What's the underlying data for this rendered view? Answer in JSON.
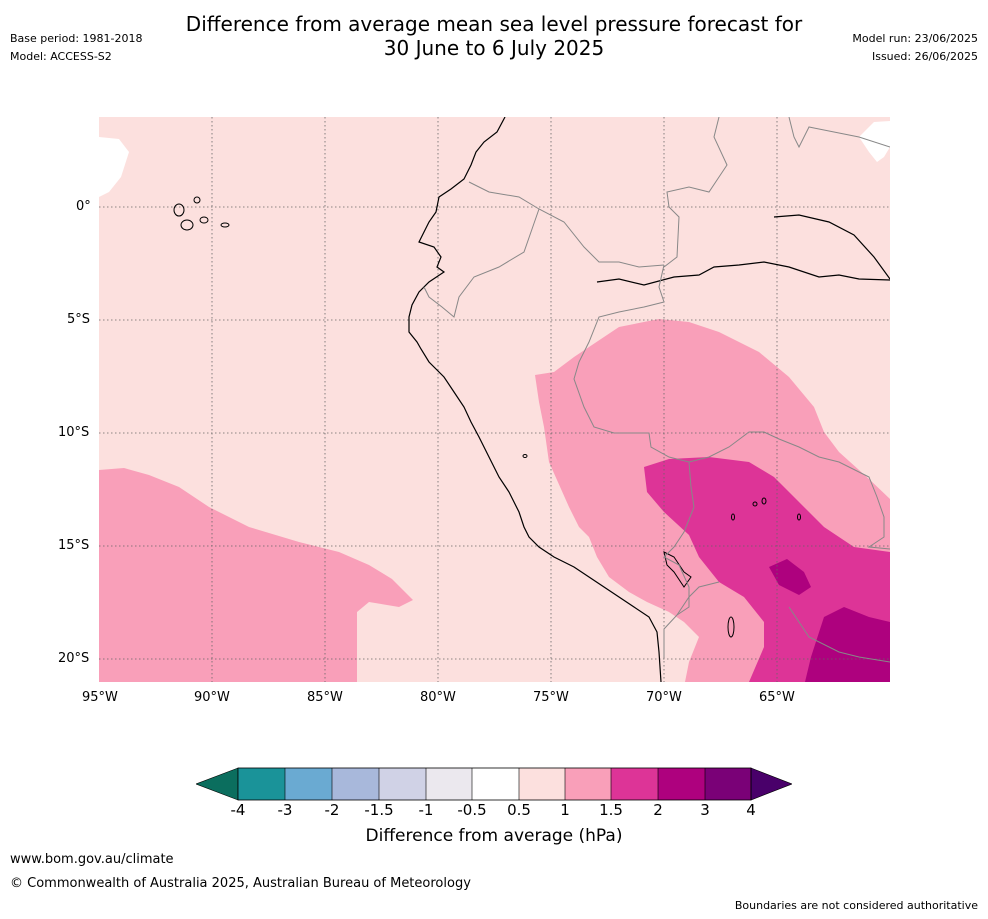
{
  "header": {
    "title_line1": "Difference from average mean sea level pressure forecast for",
    "title_line2": "30 June to 6 July 2025",
    "base_period": "Base period: 1981-2018",
    "model": "Model: ACCESS-S2",
    "model_run": "Model run: 23/06/2025",
    "issued": "Issued: 26/06/2025"
  },
  "axes": {
    "lon_labels": [
      "95°W",
      "90°W",
      "85°W",
      "80°W",
      "75°W",
      "70°W",
      "65°W"
    ],
    "lat_labels": [
      "0°",
      "5°S",
      "10°S",
      "15°S",
      "20°S"
    ]
  },
  "colorbar": {
    "label": "Difference from average (hPa)",
    "ticks": [
      "-4",
      "-3",
      "-2",
      "-1.5",
      "-1",
      "-0.5",
      "0.5",
      "1",
      "1.5",
      "2",
      "3",
      "4"
    ],
    "colors": {
      "below_-4": "#0b6e5e",
      "-4_-3": "#1a9399",
      "-3_-2": "#6aaad2",
      "-2_-1.5": "#a8b8db",
      "-1.5_-1": "#d0d2e6",
      "-1_-0.5": "#ebe8ee",
      "-0.5_0.5": "#ffffff",
      "0.5_1": "#fce0de",
      "1_1.5": "#f99fb9",
      "1.5_2": "#dd3497",
      "2_3": "#ae017e",
      "3_4": "#7a0177",
      "above_4": "#49006a"
    }
  },
  "footer": {
    "url": "www.bom.gov.au/climate",
    "copyright": "© Commonwealth of Australia 2025, Australian Bureau of Meteorology",
    "disclaimer": "Boundaries are not considered authoritative"
  }
}
